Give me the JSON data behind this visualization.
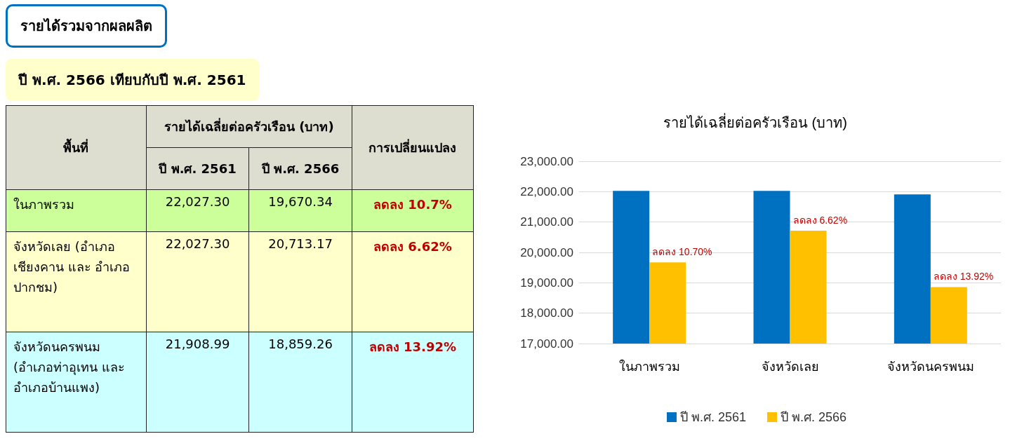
{
  "chart_data": [
    {
      "type": "other",
      "title": "รายได้รวมจากผลผลิต",
      "subtitle": "ปี พ.ศ. 2566 เทียบกับปี พ.ศ. 2561",
      "annotations": [
        "พื้นที่",
        "รายได้เฉลี่ยต่อครัวเรือน (บาท)",
        "การเปลี่ยนแปลง",
        "ปี พ.ศ. 2561",
        "ปี พ.ศ. 2566",
        "ในภาพรวม",
        "22,027.30",
        "19,670.34",
        "ลดลง 10.7%",
        "จังหวัดเลย (อำเภอเชียงคาน และ อำเภอปากชม)",
        "22,027.30",
        "20,713.17",
        "ลดลง 6.62%",
        "จังหวัดนครพนม (อำเภอท่าอุเทน และ อำเภอบ้านแพง)",
        "21,908.99",
        "18,859.26",
        "ลดลง 13.92%"
      ]
    },
    {
      "type": "bar",
      "title": "รายได้เฉลี่ยต่อครัวเรือน (บาท)",
      "categories": [
        "ในภาพรวม",
        "จังหวัดเลย",
        "จังหวัดนครพนม"
      ],
      "series": [
        {
          "name": "ปี พ.ศ. 2561",
          "color": "#0070c0",
          "values": [
            22027.3,
            22027.3,
            21908.99
          ]
        },
        {
          "name": "ปี พ.ศ. 2566",
          "color": "#ffc000",
          "values": [
            19670.34,
            20713.17,
            18859.26
          ]
        }
      ],
      "ylim": [
        17000,
        23000
      ],
      "yticks": [
        {
          "value": 17000,
          "label": "17,000.00"
        },
        {
          "value": 18000,
          "label": "18,000.00"
        },
        {
          "value": 19000,
          "label": "19,000.00"
        },
        {
          "value": 20000,
          "label": "20,000.00"
        },
        {
          "value": 21000,
          "label": "21,000.00"
        },
        {
          "value": 22000,
          "label": "22,000.00"
        },
        {
          "value": 23000,
          "label": "23,000.00"
        }
      ],
      "grid": "y",
      "legend": "bottom",
      "annotations": [
        {
          "text": "ลดลง 10.70%",
          "x": "ในภาพรวม",
          "y": 19670.34
        },
        {
          "text": "ลดลง 6.62%",
          "x": "จังหวัดเลย",
          "y": 20713.17
        },
        {
          "text": "ลดลง 13.92%",
          "x": "จังหวัดนครพนม",
          "y": 18859.26
        }
      ]
    }
  ]
}
